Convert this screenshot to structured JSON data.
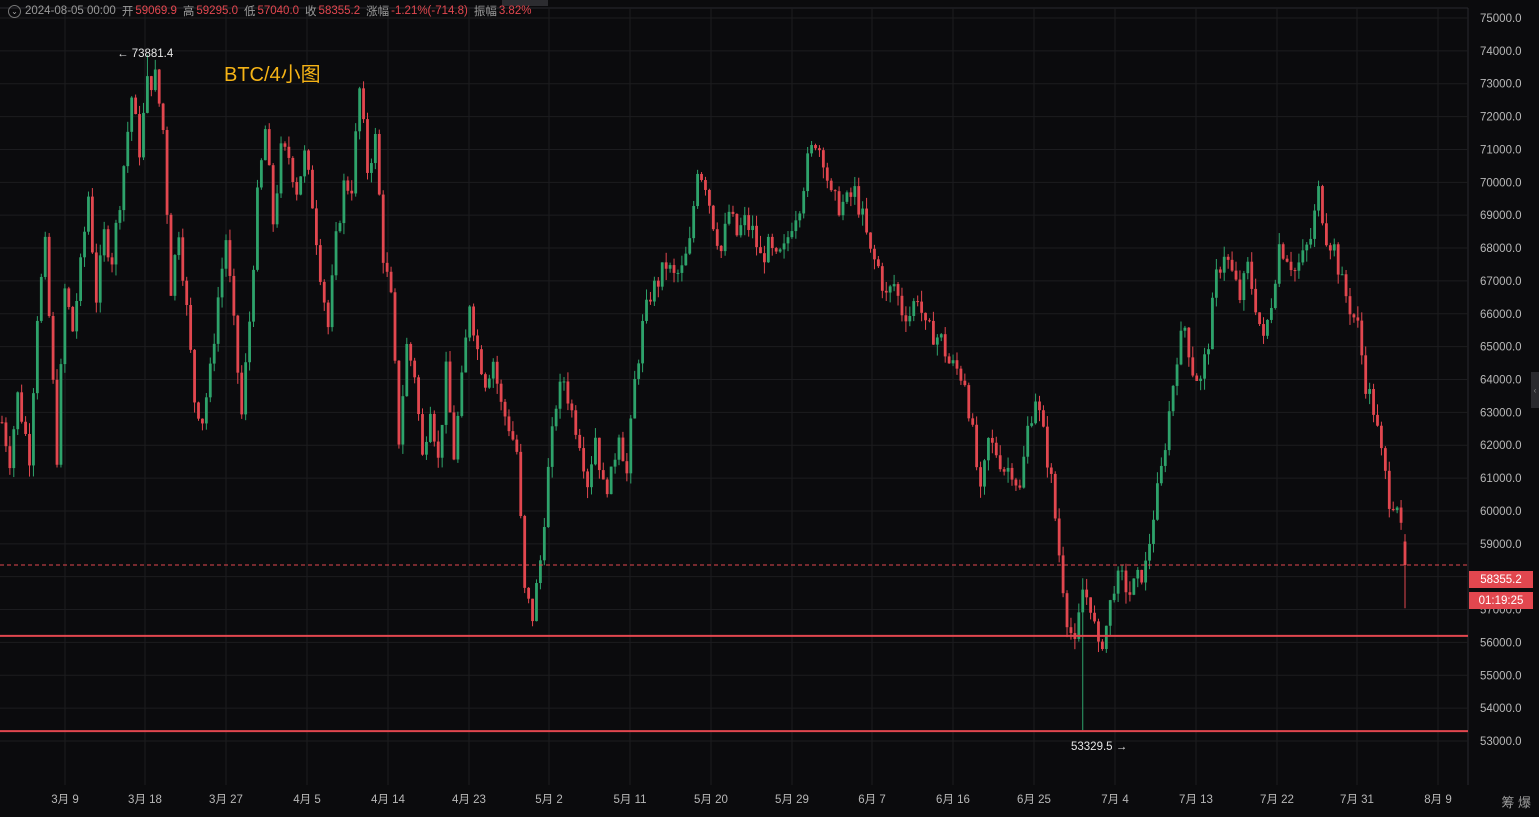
{
  "header": {
    "toggle_icon": "chevron-down-icon",
    "date": "2024-08-05 00:00",
    "open_label": "开",
    "open": "59069.9",
    "high_label": "高",
    "high": "59295.0",
    "low_label": "低",
    "low": "57040.0",
    "close_label": "收",
    "close": "58355.2",
    "change_label": "涨幅",
    "change": "-1.21%(-714.8)",
    "amplitude_label": "振幅",
    "amplitude": "3.82%"
  },
  "annotations": {
    "title": "BTC/4小图",
    "high_marker": "← 73881.4",
    "low_marker": "53329.5 →"
  },
  "price_badge": {
    "price": "58355.2",
    "countdown": "01:19:25"
  },
  "bottom_icons": {
    "left": "筹",
    "right": "爆"
  },
  "colors": {
    "background": "#0b0b0d",
    "grid": "#1c1c1f",
    "up": "#2ea36b",
    "down": "#e2474f",
    "support_line": "#e2474f",
    "title": "#f5b316",
    "axis_text": "#b8b8b8"
  },
  "chart_data": {
    "type": "candlestick",
    "title": "BTC/4小图",
    "ylim": [
      52500,
      75300
    ],
    "y_ticks": [
      "75000.0",
      "74000.0",
      "73000.0",
      "72000.0",
      "71000.0",
      "70000.0",
      "69000.0",
      "68000.0",
      "67000.0",
      "66000.0",
      "65000.0",
      "64000.0",
      "63000.0",
      "62000.0",
      "61000.0",
      "60000.0",
      "59000.0",
      "58000.0",
      "57000.0",
      "56000.0",
      "55000.0",
      "54000.0",
      "53000.0"
    ],
    "x_ticks": [
      "3月 9",
      "3月 18",
      "3月 27",
      "4月 5",
      "4月 14",
      "4月 23",
      "5月 2",
      "5月 11",
      "5月 20",
      "5月 29",
      "6月 7",
      "6月 16",
      "6月 25",
      "7月 4",
      "7月 13",
      "7月 22",
      "7月 31",
      "8月 9"
    ],
    "last_price": 58355.2,
    "high_marker": 73881.4,
    "low_marker": 53329.5,
    "support_lines": [
      56200,
      53300
    ],
    "grid": true,
    "path_points": [
      [
        0,
        62700
      ],
      [
        2,
        61600
      ],
      [
        4,
        63500
      ],
      [
        7,
        61700
      ],
      [
        9,
        66000
      ],
      [
        11,
        68000
      ],
      [
        14,
        61700
      ],
      [
        16,
        66700
      ],
      [
        18,
        65500
      ],
      [
        20,
        67400
      ],
      [
        22,
        69600
      ],
      [
        24,
        66500
      ],
      [
        26,
        68400
      ],
      [
        28,
        67700
      ],
      [
        30,
        69500
      ],
      [
        33,
        72600
      ],
      [
        35,
        71000
      ],
      [
        37,
        73000
      ],
      [
        39,
        73200
      ],
      [
        41,
        71600
      ],
      [
        43,
        66800
      ],
      [
        45,
        68600
      ],
      [
        47,
        66100
      ],
      [
        49,
        63400
      ],
      [
        51,
        62800
      ],
      [
        53,
        64200
      ],
      [
        55,
        66500
      ],
      [
        57,
        68300
      ],
      [
        59,
        65600
      ],
      [
        61,
        62900
      ],
      [
        63,
        65800
      ],
      [
        65,
        69500
      ],
      [
        67,
        71600
      ],
      [
        69,
        68800
      ],
      [
        71,
        70900
      ],
      [
        73,
        70800
      ],
      [
        75,
        69800
      ],
      [
        77,
        70800
      ],
      [
        79,
        69400
      ],
      [
        81,
        67300
      ],
      [
        83,
        65600
      ],
      [
        85,
        68200
      ],
      [
        87,
        69900
      ],
      [
        89,
        69900
      ],
      [
        91,
        72800
      ],
      [
        93,
        70400
      ],
      [
        95,
        71300
      ],
      [
        97,
        67800
      ],
      [
        99,
        66400
      ],
      [
        101,
        62200
      ],
      [
        103,
        65000
      ],
      [
        105,
        64200
      ],
      [
        107,
        61600
      ],
      [
        109,
        63300
      ],
      [
        111,
        61500
      ],
      [
        113,
        64200
      ],
      [
        115,
        61700
      ],
      [
        117,
        63900
      ],
      [
        119,
        66400
      ],
      [
        121,
        64900
      ],
      [
        123,
        64000
      ],
      [
        125,
        64600
      ],
      [
        127,
        63200
      ],
      [
        129,
        62600
      ],
      [
        131,
        61800
      ],
      [
        133,
        57500
      ],
      [
        135,
        56800
      ],
      [
        137,
        58500
      ],
      [
        139,
        61200
      ],
      [
        141,
        63300
      ],
      [
        143,
        64000
      ],
      [
        145,
        63000
      ],
      [
        147,
        62200
      ],
      [
        149,
        60900
      ],
      [
        151,
        62300
      ],
      [
        153,
        60700
      ],
      [
        155,
        61000
      ],
      [
        157,
        62500
      ],
      [
        159,
        61100
      ],
      [
        161,
        63900
      ],
      [
        163,
        65600
      ],
      [
        165,
        66600
      ],
      [
        167,
        67000
      ],
      [
        169,
        67500
      ],
      [
        171,
        67100
      ],
      [
        173,
        67300
      ],
      [
        175,
        68100
      ],
      [
        177,
        70500
      ],
      [
        179,
        70000
      ],
      [
        181,
        68800
      ],
      [
        183,
        67900
      ],
      [
        185,
        69100
      ],
      [
        187,
        68400
      ],
      [
        189,
        68800
      ],
      [
        191,
        68500
      ],
      [
        193,
        67700
      ],
      [
        195,
        68000
      ],
      [
        197,
        67600
      ],
      [
        199,
        67900
      ],
      [
        201,
        68800
      ],
      [
        203,
        69400
      ],
      [
        205,
        70600
      ],
      [
        207,
        71300
      ],
      [
        209,
        70800
      ],
      [
        211,
        69500
      ],
      [
        213,
        69300
      ],
      [
        215,
        69400
      ],
      [
        217,
        69700
      ],
      [
        219,
        68900
      ],
      [
        221,
        67800
      ],
      [
        223,
        67400
      ],
      [
        225,
        66500
      ],
      [
        227,
        66900
      ],
      [
        229,
        66100
      ],
      [
        231,
        66000
      ],
      [
        233,
        66600
      ],
      [
        235,
        65500
      ],
      [
        237,
        65400
      ],
      [
        239,
        65200
      ],
      [
        241,
        64500
      ],
      [
        243,
        64300
      ],
      [
        245,
        64000
      ],
      [
        247,
        62300
      ],
      [
        249,
        60400
      ],
      [
        251,
        62100
      ],
      [
        253,
        61800
      ],
      [
        255,
        61300
      ],
      [
        257,
        61300
      ],
      [
        259,
        60600
      ],
      [
        261,
        62500
      ],
      [
        263,
        63500
      ],
      [
        265,
        62300
      ],
      [
        267,
        60900
      ],
      [
        269,
        58700
      ],
      [
        271,
        56800
      ],
      [
        273,
        55800
      ],
      [
        275,
        57600
      ],
      [
        277,
        57200
      ],
      [
        279,
        55700
      ],
      [
        281,
        56500
      ],
      [
        283,
        57800
      ],
      [
        285,
        57900
      ],
      [
        287,
        57500
      ],
      [
        289,
        57900
      ],
      [
        291,
        58300
      ],
      [
        293,
        59900
      ],
      [
        295,
        61200
      ],
      [
        297,
        63000
      ],
      [
        299,
        64800
      ],
      [
        301,
        65600
      ],
      [
        303,
        64300
      ],
      [
        305,
        63900
      ],
      [
        307,
        65200
      ],
      [
        309,
        67100
      ],
      [
        311,
        67900
      ],
      [
        313,
        67200
      ],
      [
        315,
        66500
      ],
      [
        317,
        67400
      ],
      [
        319,
        66300
      ],
      [
        321,
        65100
      ],
      [
        323,
        66400
      ],
      [
        325,
        68100
      ],
      [
        327,
        67800
      ],
      [
        329,
        67300
      ],
      [
        331,
        67700
      ],
      [
        333,
        68300
      ],
      [
        335,
        69700
      ],
      [
        337,
        68400
      ],
      [
        339,
        68000
      ],
      [
        341,
        66900
      ],
      [
        343,
        66200
      ],
      [
        345,
        65600
      ],
      [
        347,
        63900
      ],
      [
        349,
        63100
      ],
      [
        351,
        61700
      ],
      [
        353,
        60400
      ],
      [
        355,
        60300
      ],
      [
        357,
        58300
      ]
    ],
    "series": [
      {
        "type": "candlestick",
        "candle_count": 358
      }
    ]
  }
}
